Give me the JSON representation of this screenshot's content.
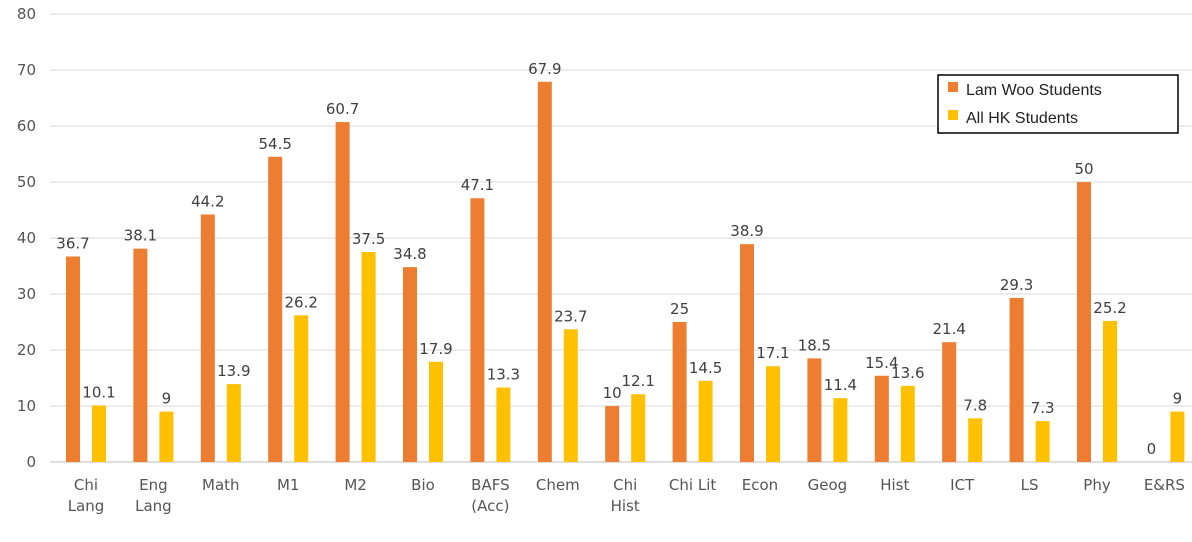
{
  "colors": {
    "series_lamwoo": "#ED7D31",
    "series_allhk": "#FFC000",
    "gridline": "#D9D9D9",
    "axis": "#BFBFBF",
    "title": "#4E9A26"
  },
  "chart_data": {
    "type": "bar",
    "title": "",
    "xlabel": "",
    "ylabel": "",
    "ylim": [
      0,
      80
    ],
    "yticks": [
      0,
      10,
      20,
      30,
      40,
      50,
      60,
      70,
      80
    ],
    "grid": true,
    "legend_position": "top-right",
    "categories": [
      "Chi\nLang",
      "Eng\nLang",
      "Math",
      "M1",
      "M2",
      "Bio",
      "BAFS\n(Acc)",
      "Chem",
      "Chi\nHist",
      "Chi Lit",
      "Econ",
      "Geog",
      "Hist",
      "ICT",
      "LS",
      "Phy",
      "E&RS"
    ],
    "series": [
      {
        "name": "Lam Woo Students",
        "values": [
          36.7,
          38.1,
          44.2,
          54.5,
          60.7,
          34.8,
          47.1,
          67.9,
          10,
          25,
          38.9,
          18.5,
          15.4,
          21.4,
          29.3,
          50,
          0
        ]
      },
      {
        "name": "All HK Students",
        "values": [
          10.1,
          9,
          13.9,
          26.2,
          37.5,
          17.9,
          13.3,
          23.7,
          12.1,
          14.5,
          17.1,
          11.4,
          13.6,
          7.8,
          7.3,
          25.2,
          9
        ]
      }
    ]
  }
}
